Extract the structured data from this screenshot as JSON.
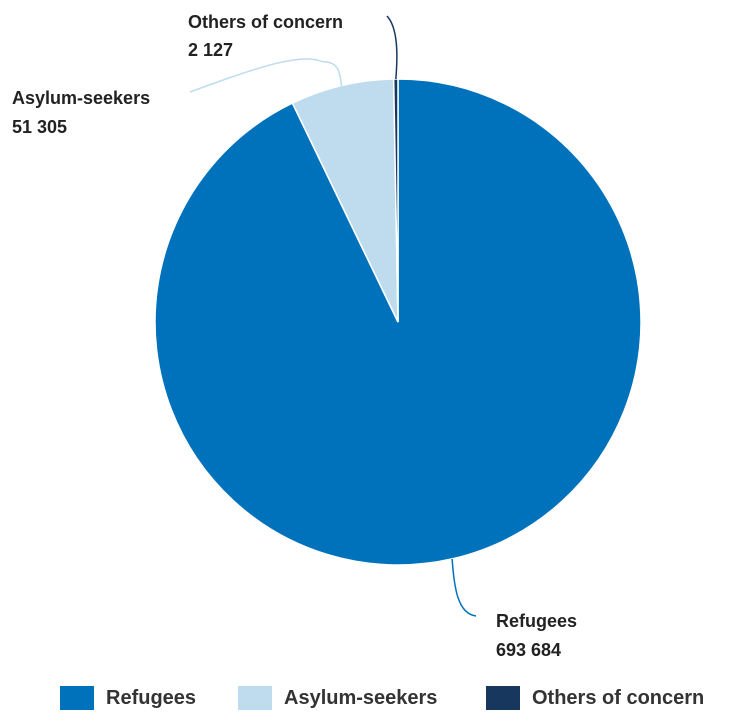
{
  "chart_data": {
    "type": "pie",
    "title": "",
    "slices": [
      {
        "name": "Refugees",
        "value": 693684,
        "value_label": "693 684",
        "color": "#0072bc"
      },
      {
        "name": "Asylum-seekers",
        "value": 51305,
        "value_label": "51 305",
        "color": "#bfdcee"
      },
      {
        "name": "Others of concern",
        "value": 2127,
        "value_label": "2 127",
        "color": "#18375f"
      }
    ],
    "legend": {
      "placement": "bottom",
      "entries": [
        "Refugees",
        "Asylum-seekers",
        "Others of concern"
      ]
    }
  }
}
